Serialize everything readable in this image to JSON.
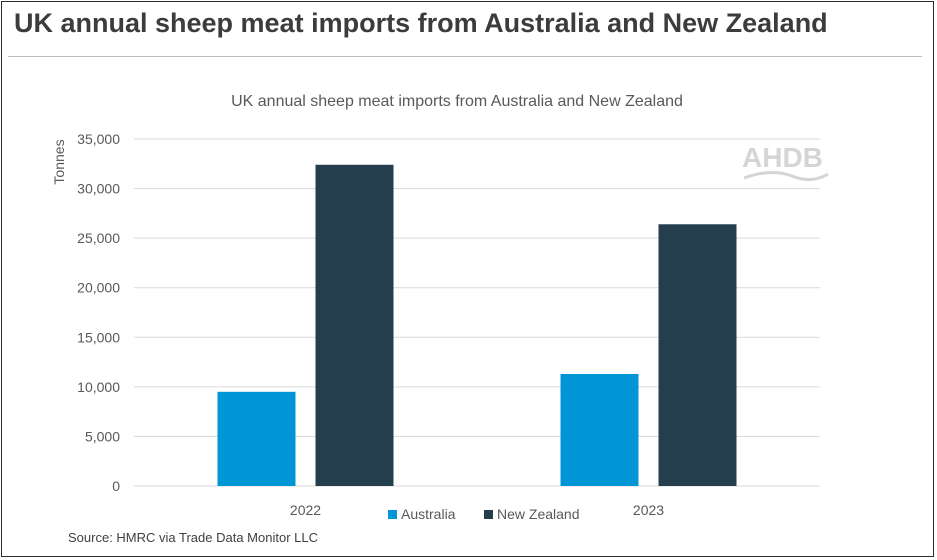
{
  "header": {
    "title": "UK annual sheep meat imports from Australia and New Zealand"
  },
  "logo": {
    "text": "AHDB"
  },
  "source": "Source: HMRC via Trade Data Monitor LLC",
  "colors": {
    "australia": "#0096d6",
    "new_zealand": "#243e4e",
    "gridline": "#d9d9d9",
    "tick_text": "#595959"
  },
  "chart_data": {
    "type": "bar",
    "title": "UK annual sheep meat imports from Australia and New Zealand",
    "ylabel": "Tonnes",
    "xlabel": "",
    "categories": [
      "2022",
      "2023"
    ],
    "series": [
      {
        "name": "Australia",
        "values": [
          9500,
          11300
        ]
      },
      {
        "name": "New Zealand",
        "values": [
          32400,
          26400
        ]
      }
    ],
    "ylim": [
      0,
      35000
    ],
    "yticks": [
      0,
      5000,
      10000,
      15000,
      20000,
      25000,
      30000,
      35000
    ],
    "ytick_labels": [
      "0",
      "5,000",
      "10,000",
      "15,000",
      "20,000",
      "25,000",
      "30,000",
      "35,000"
    ],
    "grid": true,
    "legend_position": "bottom"
  }
}
